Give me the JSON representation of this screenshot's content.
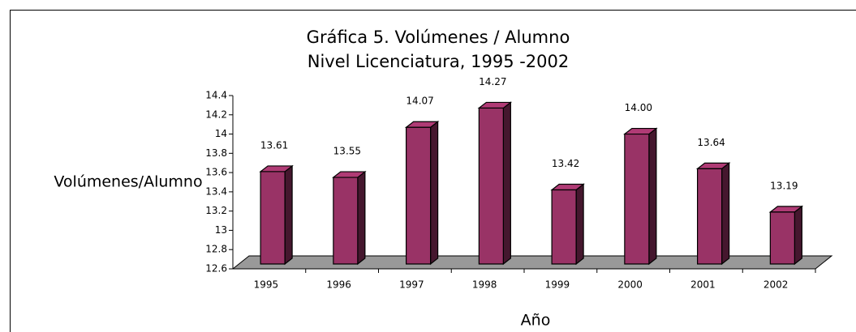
{
  "chart_data": {
    "type": "bar3d",
    "title": "Gráfica 5. Volúmenes / Alumno",
    "subtitle": "Nivel Licenciatura, 1995 -2002",
    "y_label": "Volúmenes/Alumno",
    "x_label": "Año",
    "categories": [
      "1995",
      "1996",
      "1997",
      "1998",
      "1999",
      "2000",
      "2001",
      "2002"
    ],
    "values": [
      13.61,
      13.55,
      14.07,
      14.27,
      13.42,
      14.0,
      13.64,
      13.19
    ],
    "value_labels": [
      "13.61",
      "13.55",
      "14.07",
      "14.27",
      "13.42",
      "14.00",
      "13.64",
      "13.19"
    ],
    "color": "#993366",
    "ylim": [
      12.6,
      14.4
    ],
    "yticks": [
      12.6,
      12.8,
      13,
      13.2,
      13.4,
      13.6,
      13.8,
      14,
      14.2,
      14.4
    ]
  }
}
